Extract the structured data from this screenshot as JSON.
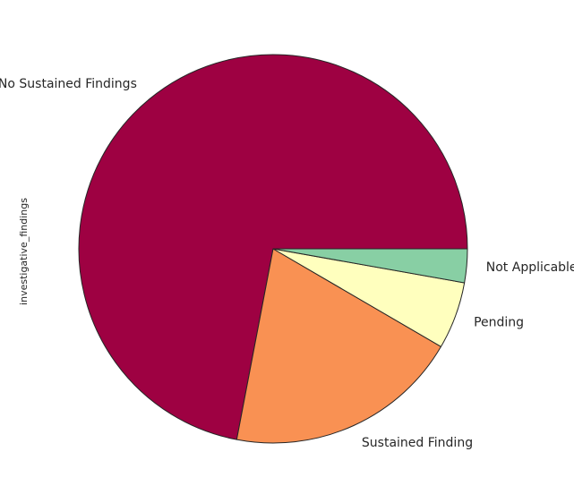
{
  "chart_data": {
    "type": "pie",
    "ylabel": "investigative_findings",
    "slices": [
      {
        "label": "No Sustained Findings",
        "value": 72.0,
        "color": "#9e0142"
      },
      {
        "label": "Sustained Finding",
        "value": 19.6,
        "color": "#f99153"
      },
      {
        "label": "Pending",
        "value": 5.6,
        "color": "#ffffbe"
      },
      {
        "label": "Not Applicable",
        "value": 2.8,
        "color": "#88cfa4"
      }
    ],
    "start_angle_deg": 0,
    "direction": "counterclockwise",
    "edge_color": "#262626"
  }
}
